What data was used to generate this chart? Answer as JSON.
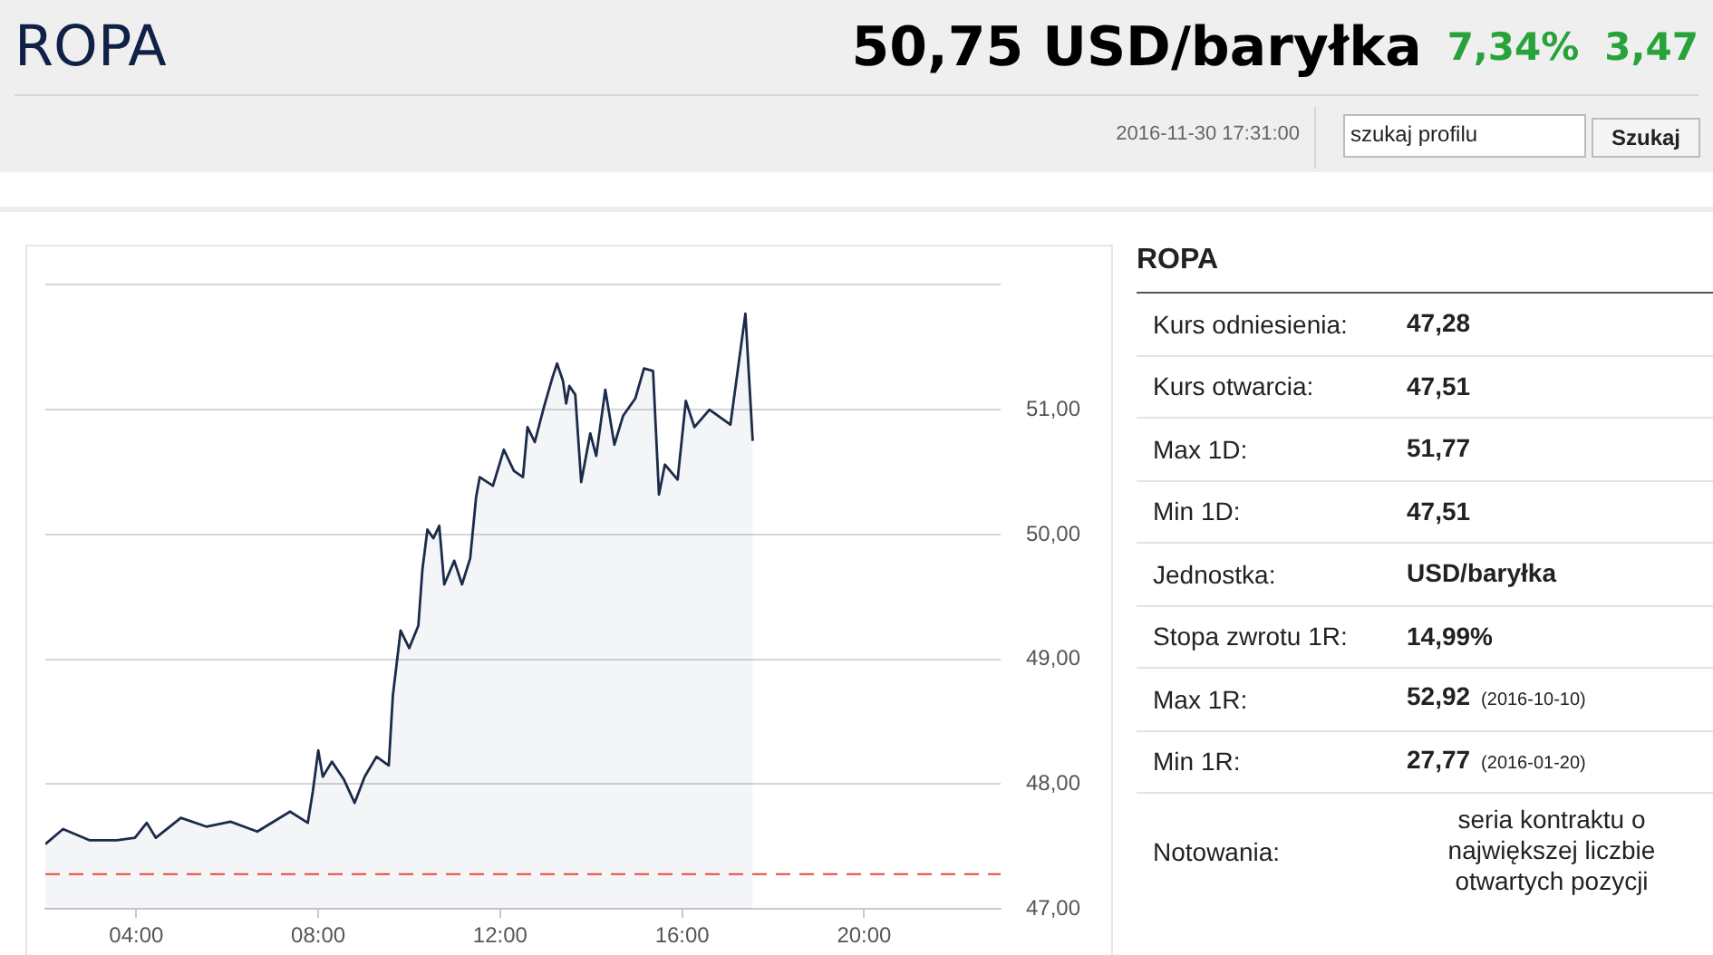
{
  "chart_data": [
    {
      "type": "other",
      "title": "ROPA",
      "annotations": [
        "50,75 USD/baryłka",
        "7,34%",
        "3,47",
        "2016-11-30 17:31:00",
        "szukaj profilu",
        "Szukaj"
      ]
    },
    {
      "type": "area",
      "xlim": [
        2,
        23
      ],
      "xticks": [
        {
          "value": 4,
          "label": "04:00"
        },
        {
          "value": 8,
          "label": "08:00"
        },
        {
          "value": 12,
          "label": "12:00"
        },
        {
          "value": 16,
          "label": "16:00"
        },
        {
          "value": 20,
          "label": "20:00"
        }
      ],
      "ylim": [
        47,
        52
      ],
      "yticks": [
        {
          "value": 47,
          "label": "47,00"
        },
        {
          "value": 48,
          "label": "48,00"
        },
        {
          "value": 49,
          "label": "49,00"
        },
        {
          "value": 50,
          "label": "50,00"
        },
        {
          "value": 51,
          "label": "51,00"
        },
        {
          "value": 52,
          "label": null
        }
      ],
      "grid": "y",
      "legend": false,
      "marker": "none",
      "line_style": "solid",
      "ref_lines": [
        {
          "axis": "y",
          "value": 47.28,
          "color": "#e8453c",
          "line_style": "dashed"
        }
      ],
      "series": [
        {
          "color": "#1c2b4a",
          "x": [
            2.0,
            2.39,
            2.98,
            3.57,
            3.97,
            4.23,
            4.43,
            4.98,
            5.54,
            6.07,
            6.66,
            7.38,
            7.77,
            7.88,
            8.0,
            8.1,
            8.3,
            8.56,
            8.8,
            9.02,
            9.28,
            9.55,
            9.64,
            9.81,
            10.0,
            10.2,
            10.29,
            10.4,
            10.53,
            10.66,
            10.77,
            10.99,
            11.16,
            11.34,
            11.47,
            11.55,
            11.84,
            12.08,
            12.3,
            12.5,
            12.6,
            12.76,
            12.96,
            13.15,
            13.25,
            13.38,
            13.45,
            13.52,
            13.65,
            13.78,
            13.98,
            14.11,
            14.31,
            14.51,
            14.7,
            14.97,
            15.16,
            15.36,
            15.49,
            15.62,
            15.9,
            16.08,
            16.27,
            16.6,
            17.06,
            17.19,
            17.39,
            17.55
          ],
          "values": [
            47.52,
            47.64,
            47.55,
            47.55,
            47.57,
            47.69,
            47.57,
            47.73,
            47.66,
            47.7,
            47.62,
            47.78,
            47.69,
            47.94,
            48.27,
            48.06,
            48.18,
            48.04,
            47.85,
            48.06,
            48.22,
            48.15,
            48.71,
            49.23,
            49.09,
            49.27,
            49.72,
            50.04,
            49.97,
            50.07,
            49.6,
            49.79,
            49.6,
            49.81,
            50.3,
            50.46,
            50.39,
            50.68,
            50.51,
            50.46,
            50.86,
            50.74,
            51.02,
            51.26,
            51.37,
            51.23,
            51.05,
            51.19,
            51.12,
            50.42,
            50.81,
            50.63,
            51.16,
            50.72,
            50.95,
            51.09,
            51.33,
            51.31,
            50.32,
            50.56,
            50.44,
            51.07,
            50.86,
            51.0,
            50.88,
            51.23,
            51.77,
            50.75
          ]
        }
      ]
    },
    {
      "type": "other",
      "title": "ROPA",
      "cell_labels": [
        [
          "Kurs odniesienia:",
          "47,28",
          null
        ],
        [
          "Kurs otwarcia:",
          "47,51",
          null
        ],
        [
          "Max 1D:",
          "51,77",
          null
        ],
        [
          "Min 1D:",
          "47,51",
          null
        ],
        [
          "Jednostka:",
          "USD/baryłka",
          null
        ],
        [
          "Stopa zwrotu 1R:",
          "14,99%",
          null
        ],
        [
          "Max 1R:",
          "52,92",
          "(2016-10-10)"
        ],
        [
          "Min 1R:",
          "27,77",
          "(2016-01-20)"
        ],
        [
          "Notowania:",
          "seria kontraktu o największej liczbie otwartych pozycji",
          null
        ]
      ]
    }
  ]
}
